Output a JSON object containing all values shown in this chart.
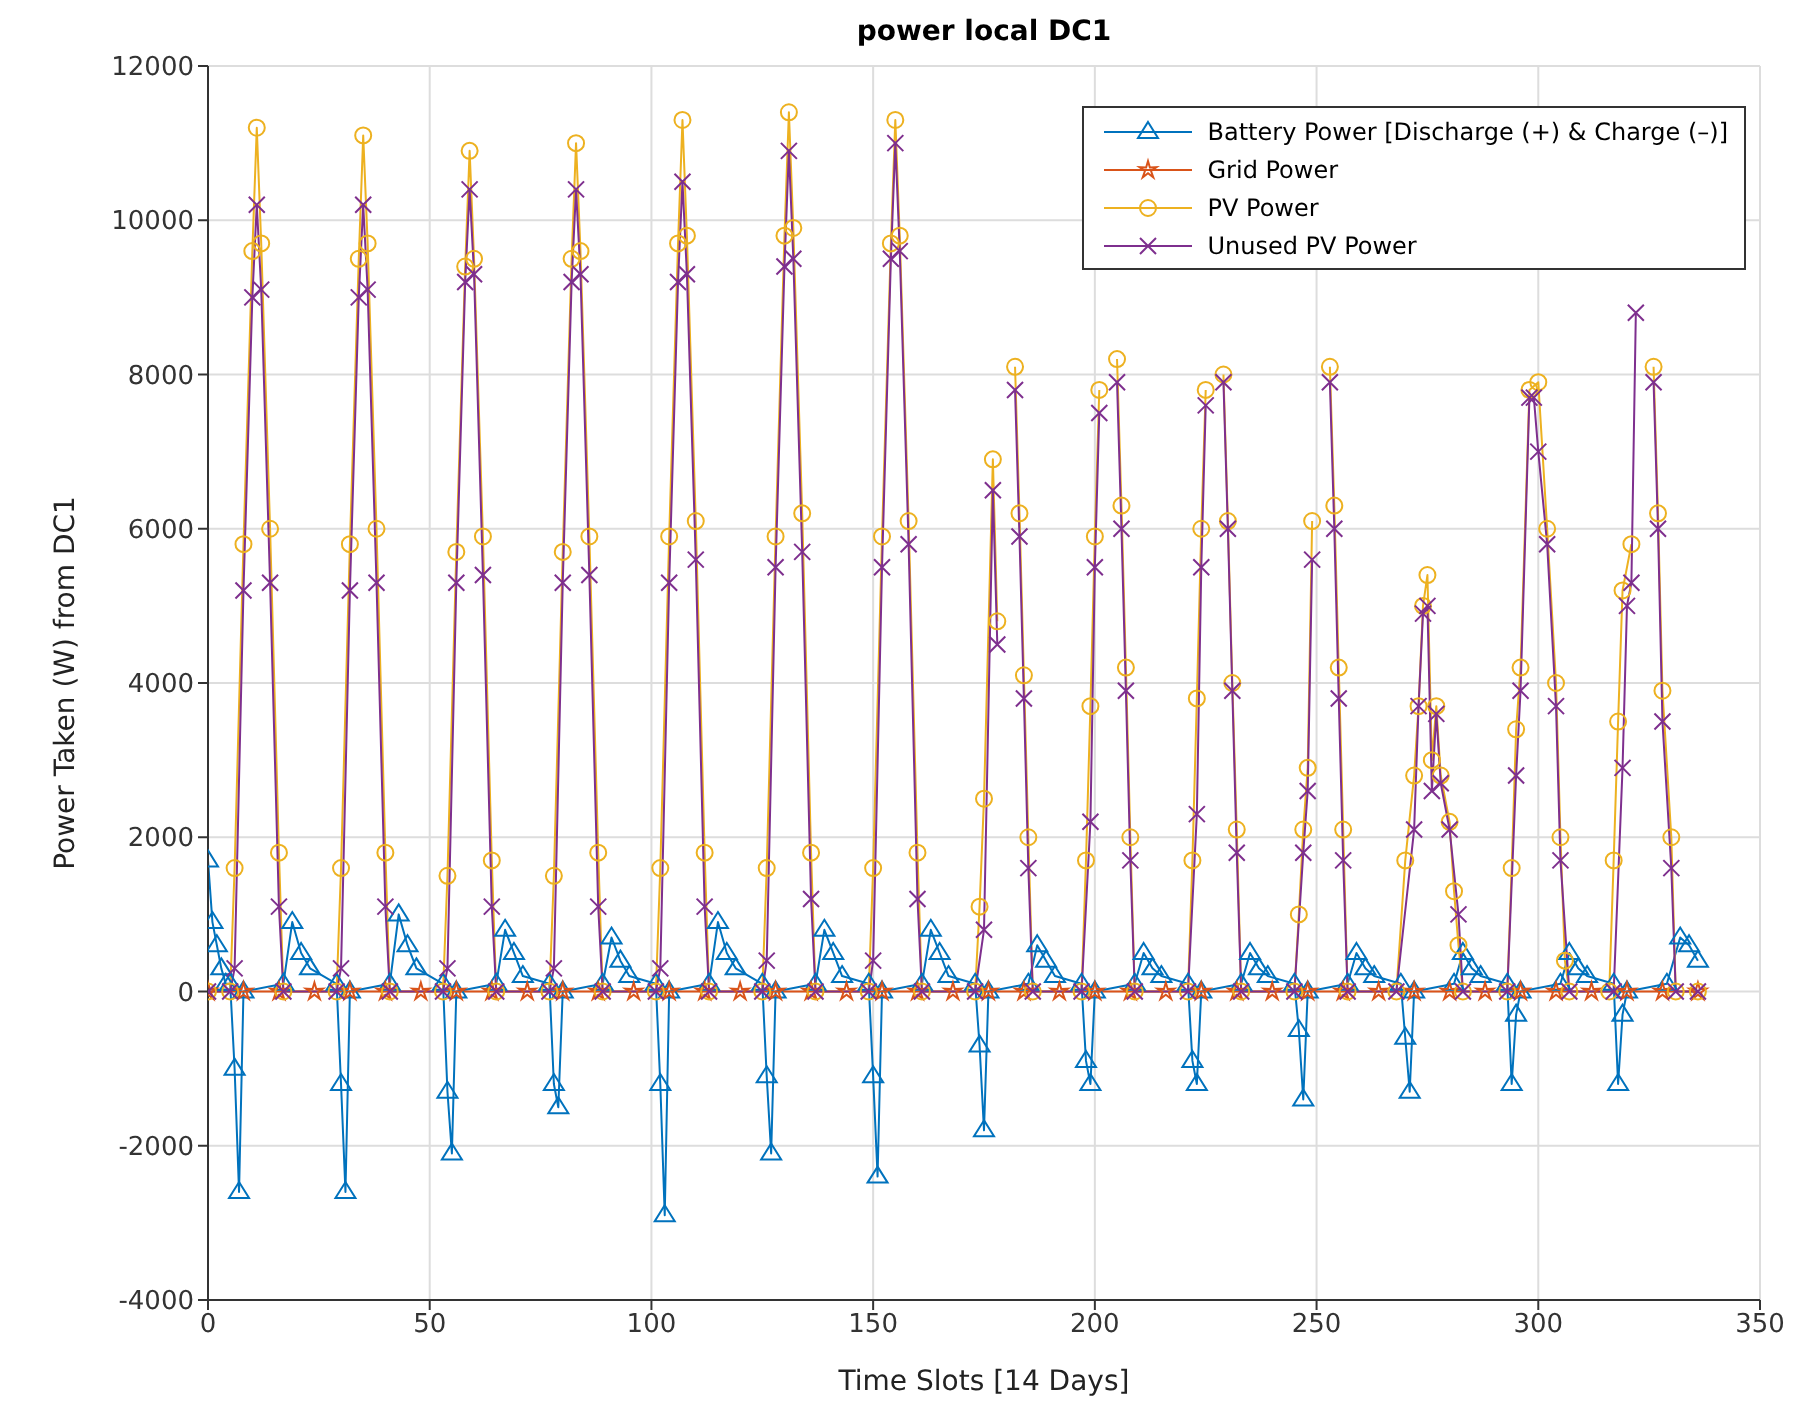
{
  "chart_data": {
    "type": "line",
    "title": "power local DC1",
    "xlabel": "Time Slots [14 Days]",
    "ylabel": "Power Taken (W) from DC1",
    "xlim": [
      0,
      350
    ],
    "xticks": [
      0,
      50,
      100,
      150,
      200,
      250,
      300,
      350
    ],
    "ylim": [
      -4000,
      12000
    ],
    "yticks": [
      -4000,
      -2000,
      0,
      2000,
      4000,
      6000,
      8000,
      10000,
      12000
    ],
    "grid": true,
    "legend": "top right",
    "series": [
      {
        "name": "Battery Power [Discharge (+) & Charge (–)]",
        "color": "#0072bd",
        "marker": "triangle",
        "x": [
          0,
          1,
          2,
          3,
          4,
          5,
          6,
          7,
          8,
          17,
          19,
          21,
          23,
          29,
          30,
          31,
          32,
          41,
          43,
          45,
          47,
          53,
          54,
          55,
          56,
          65,
          67,
          69,
          71,
          77,
          78,
          79,
          80,
          89,
          91,
          93,
          95,
          101,
          102,
          103,
          104,
          113,
          115,
          117,
          119,
          125,
          126,
          127,
          128,
          137,
          139,
          141,
          143,
          149,
          150,
          151,
          152,
          161,
          163,
          165,
          167,
          173,
          174,
          175,
          176,
          185,
          187,
          189,
          191,
          197,
          198,
          199,
          200,
          209,
          211,
          213,
          215,
          221,
          222,
          223,
          224,
          233,
          235,
          237,
          239,
          245,
          246,
          247,
          248,
          257,
          259,
          261,
          263,
          269,
          270,
          271,
          272,
          281,
          283,
          285,
          287,
          293,
          294,
          295,
          296,
          305,
          307,
          309,
          311,
          317,
          318,
          319,
          320,
          329,
          332,
          334,
          336
        ],
        "values": [
          1700,
          900,
          600,
          300,
          100,
          100,
          -1000,
          -2600,
          0,
          100,
          900,
          500,
          300,
          100,
          -1200,
          -2600,
          0,
          100,
          1000,
          600,
          300,
          100,
          -1300,
          -2100,
          0,
          100,
          800,
          500,
          200,
          100,
          -1200,
          -1500,
          0,
          100,
          700,
          400,
          200,
          100,
          -1200,
          -2900,
          0,
          100,
          900,
          500,
          300,
          100,
          -1100,
          -2100,
          0,
          100,
          800,
          500,
          200,
          100,
          -1100,
          -2400,
          0,
          100,
          800,
          500,
          200,
          100,
          -700,
          -1800,
          0,
          100,
          600,
          400,
          200,
          100,
          -900,
          -1200,
          0,
          100,
          500,
          300,
          200,
          100,
          -900,
          -1200,
          0,
          100,
          500,
          300,
          200,
          100,
          -500,
          -1400,
          0,
          100,
          500,
          300,
          200,
          100,
          -600,
          -1300,
          0,
          100,
          500,
          300,
          200,
          100,
          -1200,
          -300,
          0,
          100,
          500,
          300,
          200,
          100,
          -1200,
          -300,
          0,
          100,
          700,
          600,
          400
        ]
      },
      {
        "name": "Grid Power",
        "color": "#d95319",
        "marker": "star",
        "x": [
          0,
          8,
          16,
          24,
          32,
          40,
          48,
          56,
          64,
          72,
          80,
          88,
          96,
          104,
          112,
          120,
          128,
          136,
          144,
          152,
          160,
          168,
          176,
          184,
          192,
          200,
          208,
          216,
          224,
          232,
          240,
          248,
          256,
          264,
          272,
          280,
          288,
          296,
          304,
          312,
          320,
          328,
          336
        ],
        "values": [
          0,
          0,
          0,
          0,
          0,
          0,
          0,
          0,
          0,
          0,
          0,
          0,
          0,
          0,
          0,
          0,
          0,
          0,
          0,
          0,
          0,
          0,
          0,
          0,
          0,
          0,
          0,
          0,
          0,
          0,
          0,
          0,
          0,
          0,
          0,
          0,
          0,
          0,
          0,
          0,
          0,
          0,
          0
        ]
      },
      {
        "name": "PV Power",
        "color": "#edb120",
        "marker": "circle",
        "x": [
          0,
          5,
          6,
          8,
          10,
          11,
          12,
          14,
          16,
          17,
          29,
          30,
          32,
          34,
          35,
          36,
          38,
          40,
          41,
          53,
          54,
          56,
          58,
          59,
          60,
          62,
          64,
          65,
          77,
          78,
          80,
          82,
          83,
          84,
          86,
          88,
          89,
          101,
          102,
          104,
          106,
          107,
          108,
          110,
          112,
          113,
          125,
          126,
          128,
          130,
          131,
          132,
          134,
          136,
          137,
          149,
          150,
          152,
          154,
          155,
          156,
          158,
          160,
          161,
          173,
          174,
          175,
          177,
          178,
          180,
          182,
          183,
          184,
          185,
          186,
          197,
          198,
          199,
          200,
          201,
          203,
          205,
          206,
          207,
          208,
          209,
          221,
          222,
          223,
          224,
          225,
          227,
          229,
          230,
          231,
          232,
          233,
          245,
          246,
          247,
          248,
          249,
          251,
          253,
          254,
          255,
          256,
          257,
          268,
          270,
          272,
          273,
          274,
          275,
          276,
          277,
          278,
          280,
          281,
          282,
          283,
          293,
          294,
          295,
          296,
          298,
          300,
          302,
          304,
          305,
          306,
          307,
          316,
          317,
          318,
          319,
          321,
          323,
          326,
          327,
          328,
          330,
          331,
          336
        ],
        "values": [
          0,
          0,
          1600,
          5800,
          9600,
          11200,
          9700,
          6000,
          1800,
          0,
          0,
          1600,
          5800,
          9500,
          11100,
          9700,
          6000,
          1800,
          0,
          0,
          1500,
          5700,
          9400,
          10900,
          9500,
          5900,
          1700,
          0,
          0,
          1500,
          5700,
          9500,
          11000,
          9600,
          5900,
          1800,
          0,
          0,
          1600,
          5900,
          9700,
          11300,
          9800,
          6100,
          1800,
          0,
          0,
          1600,
          5900,
          9800,
          11400,
          9900,
          6200,
          1800,
          0,
          0,
          1600,
          5900,
          9700,
          11300,
          9800,
          6100,
          1800,
          0,
          0,
          1100,
          2500,
          6900,
          4800,
          null,
          8100,
          6200,
          4100,
          2000,
          0,
          0,
          1700,
          3700,
          5900,
          7800,
          null,
          8200,
          6300,
          4200,
          2000,
          0,
          0,
          1700,
          3800,
          6000,
          7800,
          null,
          8000,
          6100,
          4000,
          2100,
          0,
          0,
          1000,
          2100,
          2900,
          6100,
          null,
          8100,
          6300,
          4200,
          2100,
          0,
          0,
          1700,
          2800,
          3700,
          5000,
          5400,
          3000,
          3700,
          2800,
          2200,
          1300,
          600,
          0,
          0,
          1600,
          3400,
          4200,
          7800,
          7900,
          6000,
          4000,
          2000,
          400,
          0,
          0,
          1700,
          3500,
          5200,
          5800,
          null,
          8100,
          6200,
          3900,
          2000,
          0,
          0
        ]
      },
      {
        "name": "Unused PV Power",
        "color": "#7e2f8e",
        "marker": "cross",
        "x": [
          0,
          5,
          6,
          8,
          10,
          11,
          12,
          14,
          16,
          17,
          29,
          30,
          32,
          34,
          35,
          36,
          38,
          40,
          41,
          53,
          54,
          56,
          58,
          59,
          60,
          62,
          64,
          65,
          77,
          78,
          80,
          82,
          83,
          84,
          86,
          88,
          89,
          101,
          102,
          104,
          106,
          107,
          108,
          110,
          112,
          113,
          125,
          126,
          128,
          130,
          131,
          132,
          134,
          136,
          137,
          149,
          150,
          152,
          154,
          155,
          156,
          158,
          160,
          161,
          173,
          175,
          177,
          178,
          180,
          182,
          183,
          184,
          185,
          186,
          197,
          199,
          200,
          201,
          203,
          205,
          206,
          207,
          208,
          209,
          221,
          223,
          224,
          225,
          227,
          229,
          230,
          231,
          232,
          233,
          245,
          247,
          248,
          249,
          251,
          253,
          254,
          255,
          256,
          257,
          268,
          272,
          273,
          274,
          275,
          276,
          277,
          278,
          280,
          282,
          283,
          293,
          295,
          296,
          298,
          299,
          300,
          302,
          304,
          305,
          307,
          317,
          319,
          320,
          321,
          322,
          323,
          326,
          327,
          328,
          330,
          331,
          336
        ],
        "values": [
          0,
          0,
          300,
          5200,
          9000,
          10200,
          9100,
          5300,
          1100,
          0,
          0,
          300,
          5200,
          9000,
          10200,
          9100,
          5300,
          1100,
          0,
          0,
          300,
          5300,
          9200,
          10400,
          9300,
          5400,
          1100,
          0,
          0,
          300,
          5300,
          9200,
          10400,
          9300,
          5400,
          1100,
          0,
          0,
          300,
          5300,
          9200,
          10500,
          9300,
          5600,
          1100,
          0,
          0,
          400,
          5500,
          9400,
          10900,
          9500,
          5700,
          1200,
          0,
          0,
          400,
          5500,
          9500,
          11000,
          9600,
          5800,
          1200,
          0,
          0,
          800,
          6500,
          4500,
          null,
          7800,
          5900,
          3800,
          1600,
          0,
          0,
          2200,
          5500,
          7500,
          null,
          7900,
          6000,
          3900,
          1700,
          0,
          0,
          2300,
          5500,
          7600,
          null,
          7900,
          6000,
          3900,
          1800,
          0,
          0,
          1800,
          2600,
          5600,
          null,
          7900,
          6000,
          3800,
          1700,
          0,
          0,
          2100,
          3700,
          4900,
          5000,
          2600,
          3600,
          2700,
          2100,
          1000,
          0,
          0,
          2800,
          3900,
          7700,
          7700,
          7000,
          5800,
          3700,
          1700,
          0,
          0,
          2900,
          5000,
          5300,
          8800,
          null,
          7900,
          6000,
          3500,
          1600,
          0,
          0
        ]
      }
    ]
  }
}
